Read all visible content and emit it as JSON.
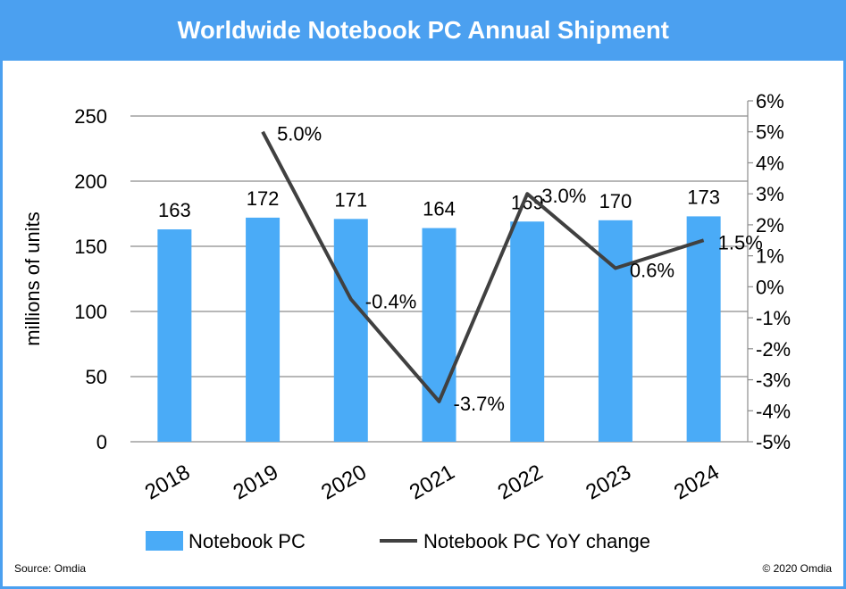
{
  "title": "Worldwide Notebook PC Annual Shipment",
  "footer": {
    "source": "Source: Omdia",
    "copyright": "© 2020 Omdia"
  },
  "colors": {
    "header": "#4ba0f0",
    "bar": "#4aabf7",
    "line": "#404040"
  },
  "chart_data": {
    "type": "bar",
    "categories": [
      "2018",
      "2019",
      "2020",
      "2021",
      "2022",
      "2023",
      "2024"
    ],
    "ylabel": "millions of units",
    "ylim": [
      0,
      250
    ],
    "yticks": [
      "0",
      "50",
      "100",
      "150",
      "200",
      "250"
    ],
    "y2lim": [
      -5,
      6
    ],
    "y2ticks": [
      "-5%",
      "-4%",
      "-3%",
      "-2%",
      "-1%",
      "0%",
      "1%",
      "2%",
      "3%",
      "4%",
      "5%",
      "6%"
    ],
    "grid": true,
    "legend_position": "bottom",
    "series": [
      {
        "name": "Notebook PC",
        "type": "bar",
        "axis": "left",
        "values": [
          163,
          172,
          171,
          164,
          169,
          170,
          173
        ],
        "labels": [
          "163",
          "172",
          "171",
          "164",
          "169",
          "170",
          "173"
        ]
      },
      {
        "name": "Notebook PC YoY change",
        "type": "line",
        "axis": "right",
        "values": [
          null,
          5.0,
          -0.4,
          -3.7,
          3.0,
          0.6,
          1.5
        ],
        "labels": [
          null,
          "5.0%",
          "-0.4%",
          "-3.7%",
          "3.0%",
          "0.6%",
          "1.5%"
        ]
      }
    ]
  }
}
